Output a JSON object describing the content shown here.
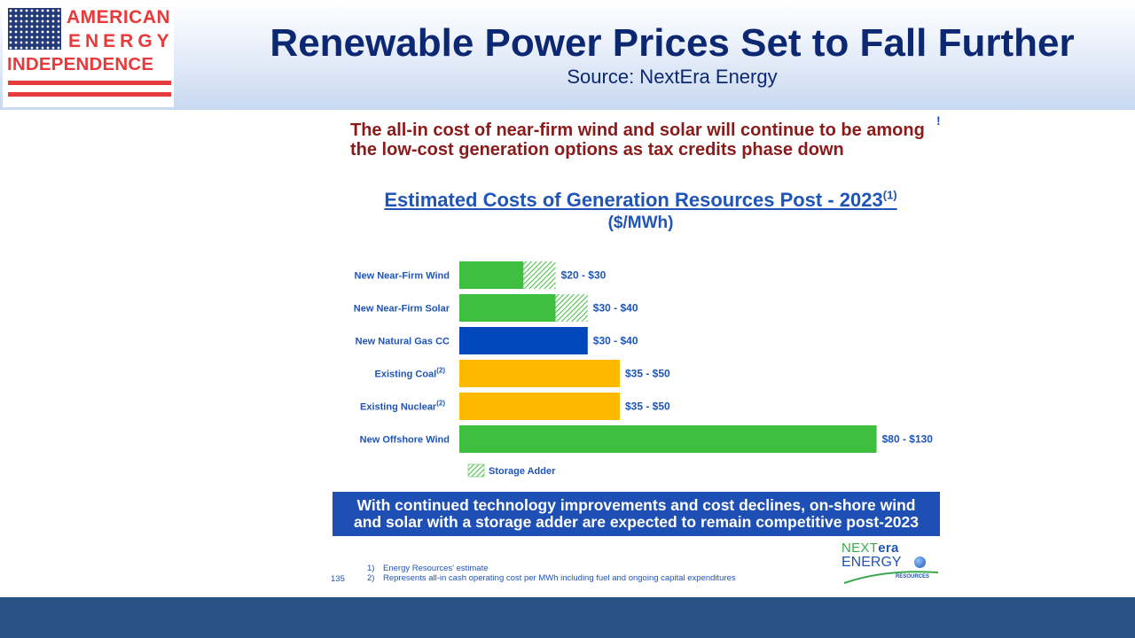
{
  "logo": {
    "line1": "AMERICAN",
    "line2": "ENERGY",
    "line3": "INDEPENDENCE"
  },
  "header": {
    "title": "Renewable Power Prices Set to Fall Further",
    "source": "Source: NextEra Energy"
  },
  "slide": {
    "headline": "The all-in cost of near-firm wind and solar will continue to be among the low-cost generation options as tax credits phase down",
    "marker": "!",
    "callout_line1": "With continued technology improvements and cost declines, on-shore wind",
    "callout_line2": "and solar with a storage adder are expected to remain competitive post-2023",
    "page_number": "135",
    "footnotes": [
      {
        "num": "1)",
        "text": "Energy Resources' estimate"
      },
      {
        "num": "2)",
        "text": "Represents all-in cash operating cost per MWh including fuel and ongoing capital expenditures"
      }
    ]
  },
  "brand": {
    "next": "NEXT",
    "era": "era",
    "energy": "ENERGY",
    "resources": "RESOURCES"
  },
  "colors": {
    "green": "#3fbf3f",
    "blue": "#0047bb",
    "gold": "#ffb800",
    "title_navy": "#0d2873",
    "label_blue": "#1f54b8",
    "headline_red": "#8b1a1a",
    "callout_bg": "#1e4fb4",
    "footer_band": "#2a5385"
  },
  "chart_data": {
    "type": "bar",
    "orientation": "horizontal",
    "stacked": true,
    "title": "Estimated Costs of Generation Resources Post - 2023",
    "title_note": "(1)",
    "subtitle": "($/MWh)",
    "categories": [
      {
        "name": "New Near-Firm Wind",
        "note": "",
        "low": 20,
        "high": 30,
        "range_label": "$20 - $30",
        "color": "green",
        "has_storage_adder": true
      },
      {
        "name": "New Near-Firm Solar",
        "note": "",
        "low": 30,
        "high": 40,
        "range_label": "$30 - $40",
        "color": "green",
        "has_storage_adder": true
      },
      {
        "name": "New Natural Gas CC",
        "note": "",
        "low": 30,
        "high": 40,
        "range_label": "$30 - $40",
        "color": "blue",
        "has_storage_adder": false
      },
      {
        "name": "Existing Coal",
        "note": "(2)",
        "low": 35,
        "high": 50,
        "range_label": "$35 - $50",
        "color": "gold",
        "has_storage_adder": false
      },
      {
        "name": "Existing Nuclear",
        "note": "(2)",
        "low": 35,
        "high": 50,
        "range_label": "$35 - $50",
        "color": "gold",
        "has_storage_adder": false
      },
      {
        "name": "New Offshore Wind",
        "note": "",
        "low": 80,
        "high": 130,
        "range_label": "$80 - $130",
        "color": "green",
        "has_storage_adder": false
      }
    ],
    "legend": [
      {
        "name": "Storage Adder",
        "pattern": "green-hatch"
      }
    ],
    "legend_position": "bottom-left",
    "grid": false
  }
}
